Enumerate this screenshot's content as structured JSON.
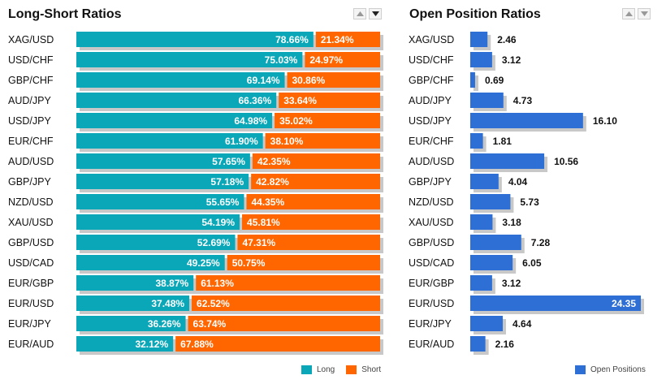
{
  "left_panel": {
    "title": "Long-Short Ratios"
  },
  "right_panel": {
    "title": "Open Position Ratios"
  },
  "colors": {
    "long": "#0aa7b8",
    "short": "#ff6600",
    "open": "#2e6fd6",
    "shadow": "#c8c8c8",
    "bar_text": "#ffffff",
    "value_text": "#111111"
  },
  "chart_data": [
    {
      "type": "bar",
      "orientation": "horizontal",
      "stacked": true,
      "title": "Long-Short Ratios",
      "categories": [
        "XAG/USD",
        "USD/CHF",
        "GBP/CHF",
        "AUD/JPY",
        "USD/JPY",
        "EUR/CHF",
        "AUD/USD",
        "GBP/JPY",
        "NZD/USD",
        "XAU/USD",
        "GBP/USD",
        "USD/CAD",
        "EUR/GBP",
        "EUR/USD",
        "EUR/JPY",
        "EUR/AUD"
      ],
      "series": [
        {
          "name": "Long",
          "values": [
            78.66,
            75.03,
            69.14,
            66.36,
            64.98,
            61.9,
            57.65,
            57.18,
            55.65,
            54.19,
            52.69,
            49.25,
            38.87,
            37.48,
            36.26,
            32.12
          ]
        },
        {
          "name": "Short",
          "values": [
            21.34,
            24.97,
            30.86,
            33.64,
            35.02,
            38.1,
            42.35,
            42.82,
            44.35,
            45.81,
            47.31,
            50.75,
            61.13,
            62.52,
            63.74,
            67.88
          ]
        }
      ],
      "labels": {
        "Long": [
          "78.66%",
          "75.03%",
          "69.14%",
          "66.36%",
          "64.98%",
          "61.90%",
          "57.65%",
          "57.18%",
          "55.65%",
          "54.19%",
          "52.69%",
          "49.25%",
          "38.87%",
          "37.48%",
          "36.26%",
          "32.12%"
        ],
        "Short": [
          "21.34%",
          "24.97%",
          "30.86%",
          "33.64%",
          "35.02%",
          "38.10%",
          "42.35%",
          "42.82%",
          "44.35%",
          "45.81%",
          "47.31%",
          "50.75%",
          "61.13%",
          "62.52%",
          "63.74%",
          "67.88%"
        ]
      },
      "xlim": [
        0,
        100
      ],
      "legend_position": "bottom-right"
    },
    {
      "type": "bar",
      "orientation": "horizontal",
      "title": "Open Position Ratios",
      "categories": [
        "XAG/USD",
        "USD/CHF",
        "GBP/CHF",
        "AUD/JPY",
        "USD/JPY",
        "EUR/CHF",
        "AUD/USD",
        "GBP/JPY",
        "NZD/USD",
        "XAU/USD",
        "GBP/USD",
        "USD/CAD",
        "EUR/GBP",
        "EUR/USD",
        "EUR/JPY",
        "EUR/AUD"
      ],
      "series": [
        {
          "name": "Open Positions",
          "values": [
            2.46,
            3.12,
            0.69,
            4.73,
            16.1,
            1.81,
            10.56,
            4.04,
            5.73,
            3.18,
            7.28,
            6.05,
            3.12,
            24.35,
            4.64,
            2.16
          ]
        }
      ],
      "labels": [
        "2.46",
        "3.12",
        "0.69",
        "4.73",
        "16.10",
        "1.81",
        "10.56",
        "4.04",
        "5.73",
        "3.18",
        "7.28",
        "6.05",
        "3.12",
        "24.35",
        "4.64",
        "2.16"
      ],
      "xlim": [
        0,
        24.35
      ],
      "legend_position": "bottom-right"
    }
  ]
}
